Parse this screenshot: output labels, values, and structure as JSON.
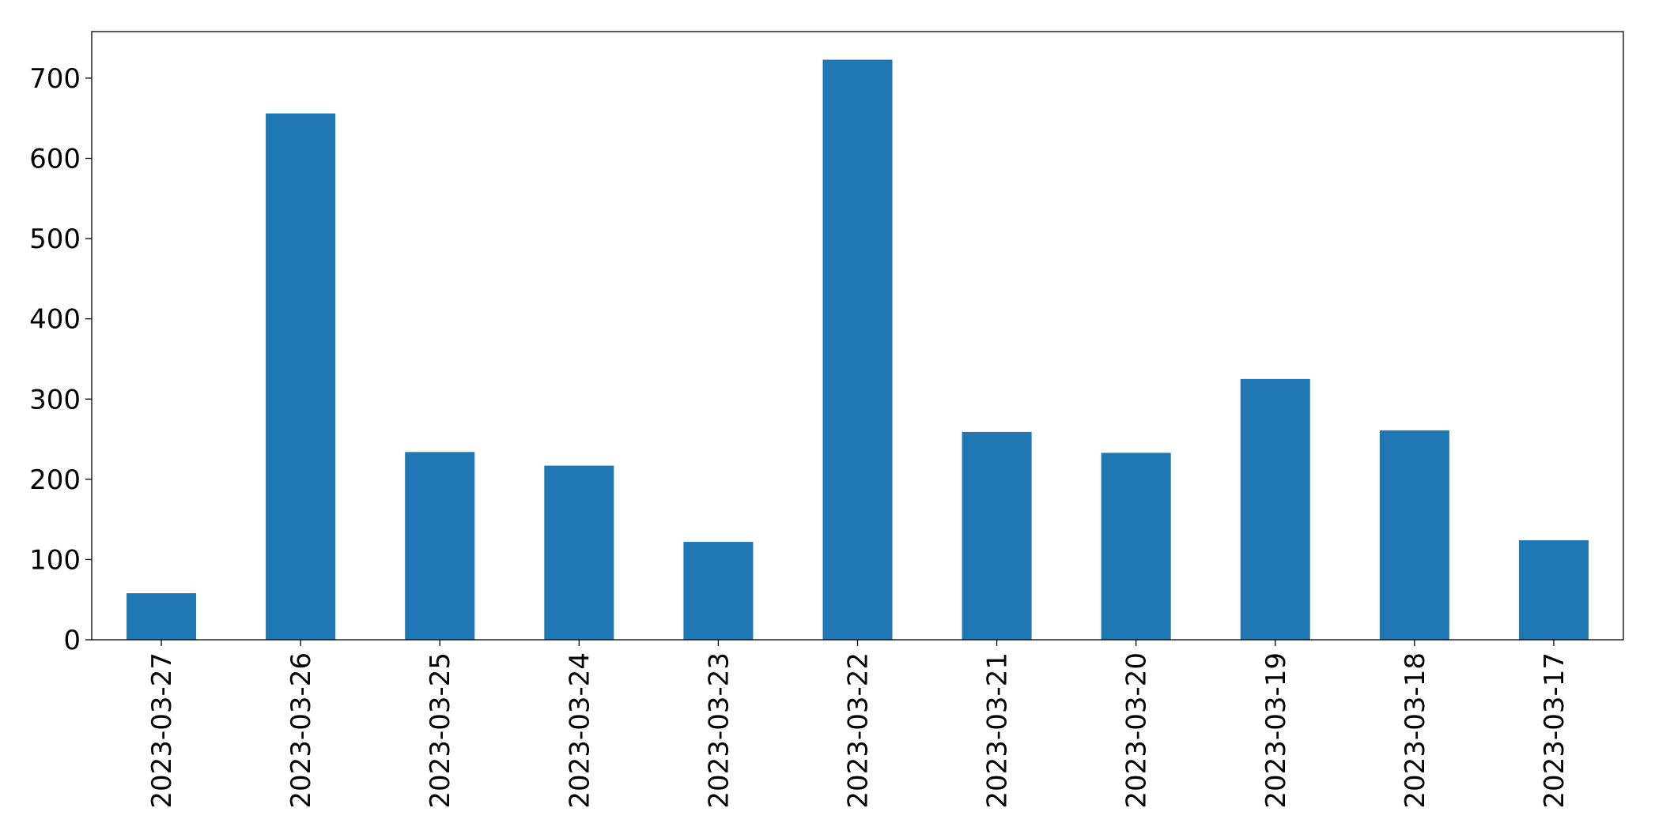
{
  "chart_data": {
    "type": "bar",
    "categories": [
      "2023-03-27",
      "2023-03-26",
      "2023-03-25",
      "2023-03-24",
      "2023-03-23",
      "2023-03-22",
      "2023-03-21",
      "2023-03-20",
      "2023-03-19",
      "2023-03-18",
      "2023-03-17"
    ],
    "values": [
      58,
      656,
      234,
      217,
      122,
      723,
      259,
      233,
      325,
      261,
      124
    ],
    "color": "#1f77b4",
    "ylim": [
      0,
      758
    ],
    "yticks": [
      0,
      100,
      200,
      300,
      400,
      500,
      600,
      700
    ],
    "grid": false
  }
}
